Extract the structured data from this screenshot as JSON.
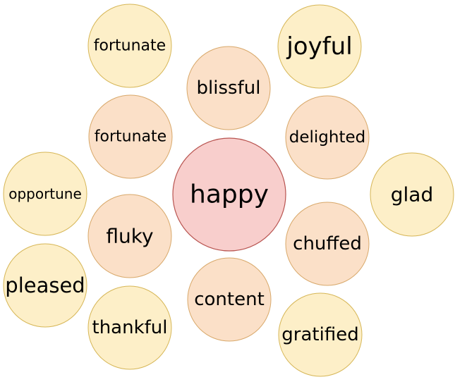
{
  "colors": {
    "center_fill": "#f8cecc",
    "center_stroke": "#b85450",
    "inner_fill": "#fbe0c8",
    "inner_stroke": "#d8a86a",
    "outer_fill": "#fdefc8",
    "outer_stroke": "#d6b656",
    "text": "#000000"
  },
  "center": {
    "label": "happy"
  },
  "inner_ring": [
    {
      "id": "blissful",
      "label": "blissful"
    },
    {
      "id": "delighted",
      "label": "delighted"
    },
    {
      "id": "chuffed",
      "label": "chuffed"
    },
    {
      "id": "content",
      "label": "content"
    },
    {
      "id": "fluky",
      "label": "fluky"
    },
    {
      "id": "fortunate-inner",
      "label": "fortunate"
    }
  ],
  "outer_ring": [
    {
      "id": "fortunate-outer",
      "label": "fortunate"
    },
    {
      "id": "joyful",
      "label": "joyful"
    },
    {
      "id": "glad",
      "label": "glad"
    },
    {
      "id": "gratified",
      "label": "gratified"
    },
    {
      "id": "thankful",
      "label": "thankful"
    },
    {
      "id": "pleased",
      "label": "pleased"
    },
    {
      "id": "opportune",
      "label": "opportune"
    }
  ]
}
